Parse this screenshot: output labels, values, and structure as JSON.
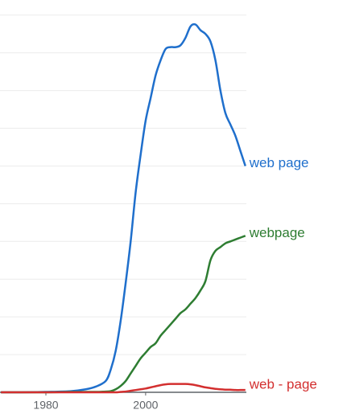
{
  "chart_data": {
    "type": "line",
    "x": [
      1971,
      1975,
      1980,
      1985,
      1988,
      1990,
      1992,
      1993,
      1994,
      1995,
      1996,
      1997,
      1998,
      1999,
      2000,
      2001,
      2002,
      2003,
      2004,
      2005,
      2006,
      2007,
      2008,
      2009,
      2010,
      2011,
      2012,
      2013,
      2014,
      2015,
      2016,
      2017,
      2018,
      2019,
      2020
    ],
    "series": [
      {
        "name": "web page",
        "color": "#1f6fcc",
        "values": [
          0,
          0,
          0.01,
          0.03,
          0.08,
          0.15,
          0.3,
          0.6,
          1.1,
          1.9,
          2.9,
          4.0,
          5.3,
          6.3,
          7.2,
          7.8,
          8.4,
          8.8,
          9.1,
          9.15,
          9.15,
          9.2,
          9.4,
          9.7,
          9.75,
          9.6,
          9.5,
          9.3,
          8.8,
          8.0,
          7.4,
          7.1,
          6.8,
          6.4,
          6.0
        ]
      },
      {
        "name": "webpage",
        "color": "#2e7d32",
        "values": [
          0,
          0,
          0,
          0.01,
          0.01,
          0.01,
          0.02,
          0.03,
          0.08,
          0.17,
          0.3,
          0.5,
          0.7,
          0.9,
          1.05,
          1.2,
          1.3,
          1.5,
          1.65,
          1.8,
          1.95,
          2.1,
          2.2,
          2.35,
          2.5,
          2.7,
          2.95,
          3.5,
          3.75,
          3.85,
          3.95,
          4.0,
          4.05,
          4.1,
          4.15
        ]
      },
      {
        "name": "web - page",
        "color": "#d32f2f",
        "values": [
          0,
          0,
          0,
          0,
          0,
          0,
          0,
          0,
          0,
          0.01,
          0.02,
          0.04,
          0.06,
          0.08,
          0.1,
          0.13,
          0.16,
          0.19,
          0.21,
          0.22,
          0.22,
          0.22,
          0.22,
          0.21,
          0.19,
          0.16,
          0.13,
          0.11,
          0.09,
          0.08,
          0.07,
          0.07,
          0.06,
          0.06,
          0.06
        ]
      }
    ],
    "xlim": [
      1970.8,
      2020.2
    ],
    "xticks": [
      1980,
      2000
    ],
    "ylim": [
      0,
      10.4
    ],
    "yticks": [
      0,
      1,
      2,
      3,
      4,
      5,
      6,
      7,
      8,
      9,
      10
    ],
    "grid": true
  }
}
